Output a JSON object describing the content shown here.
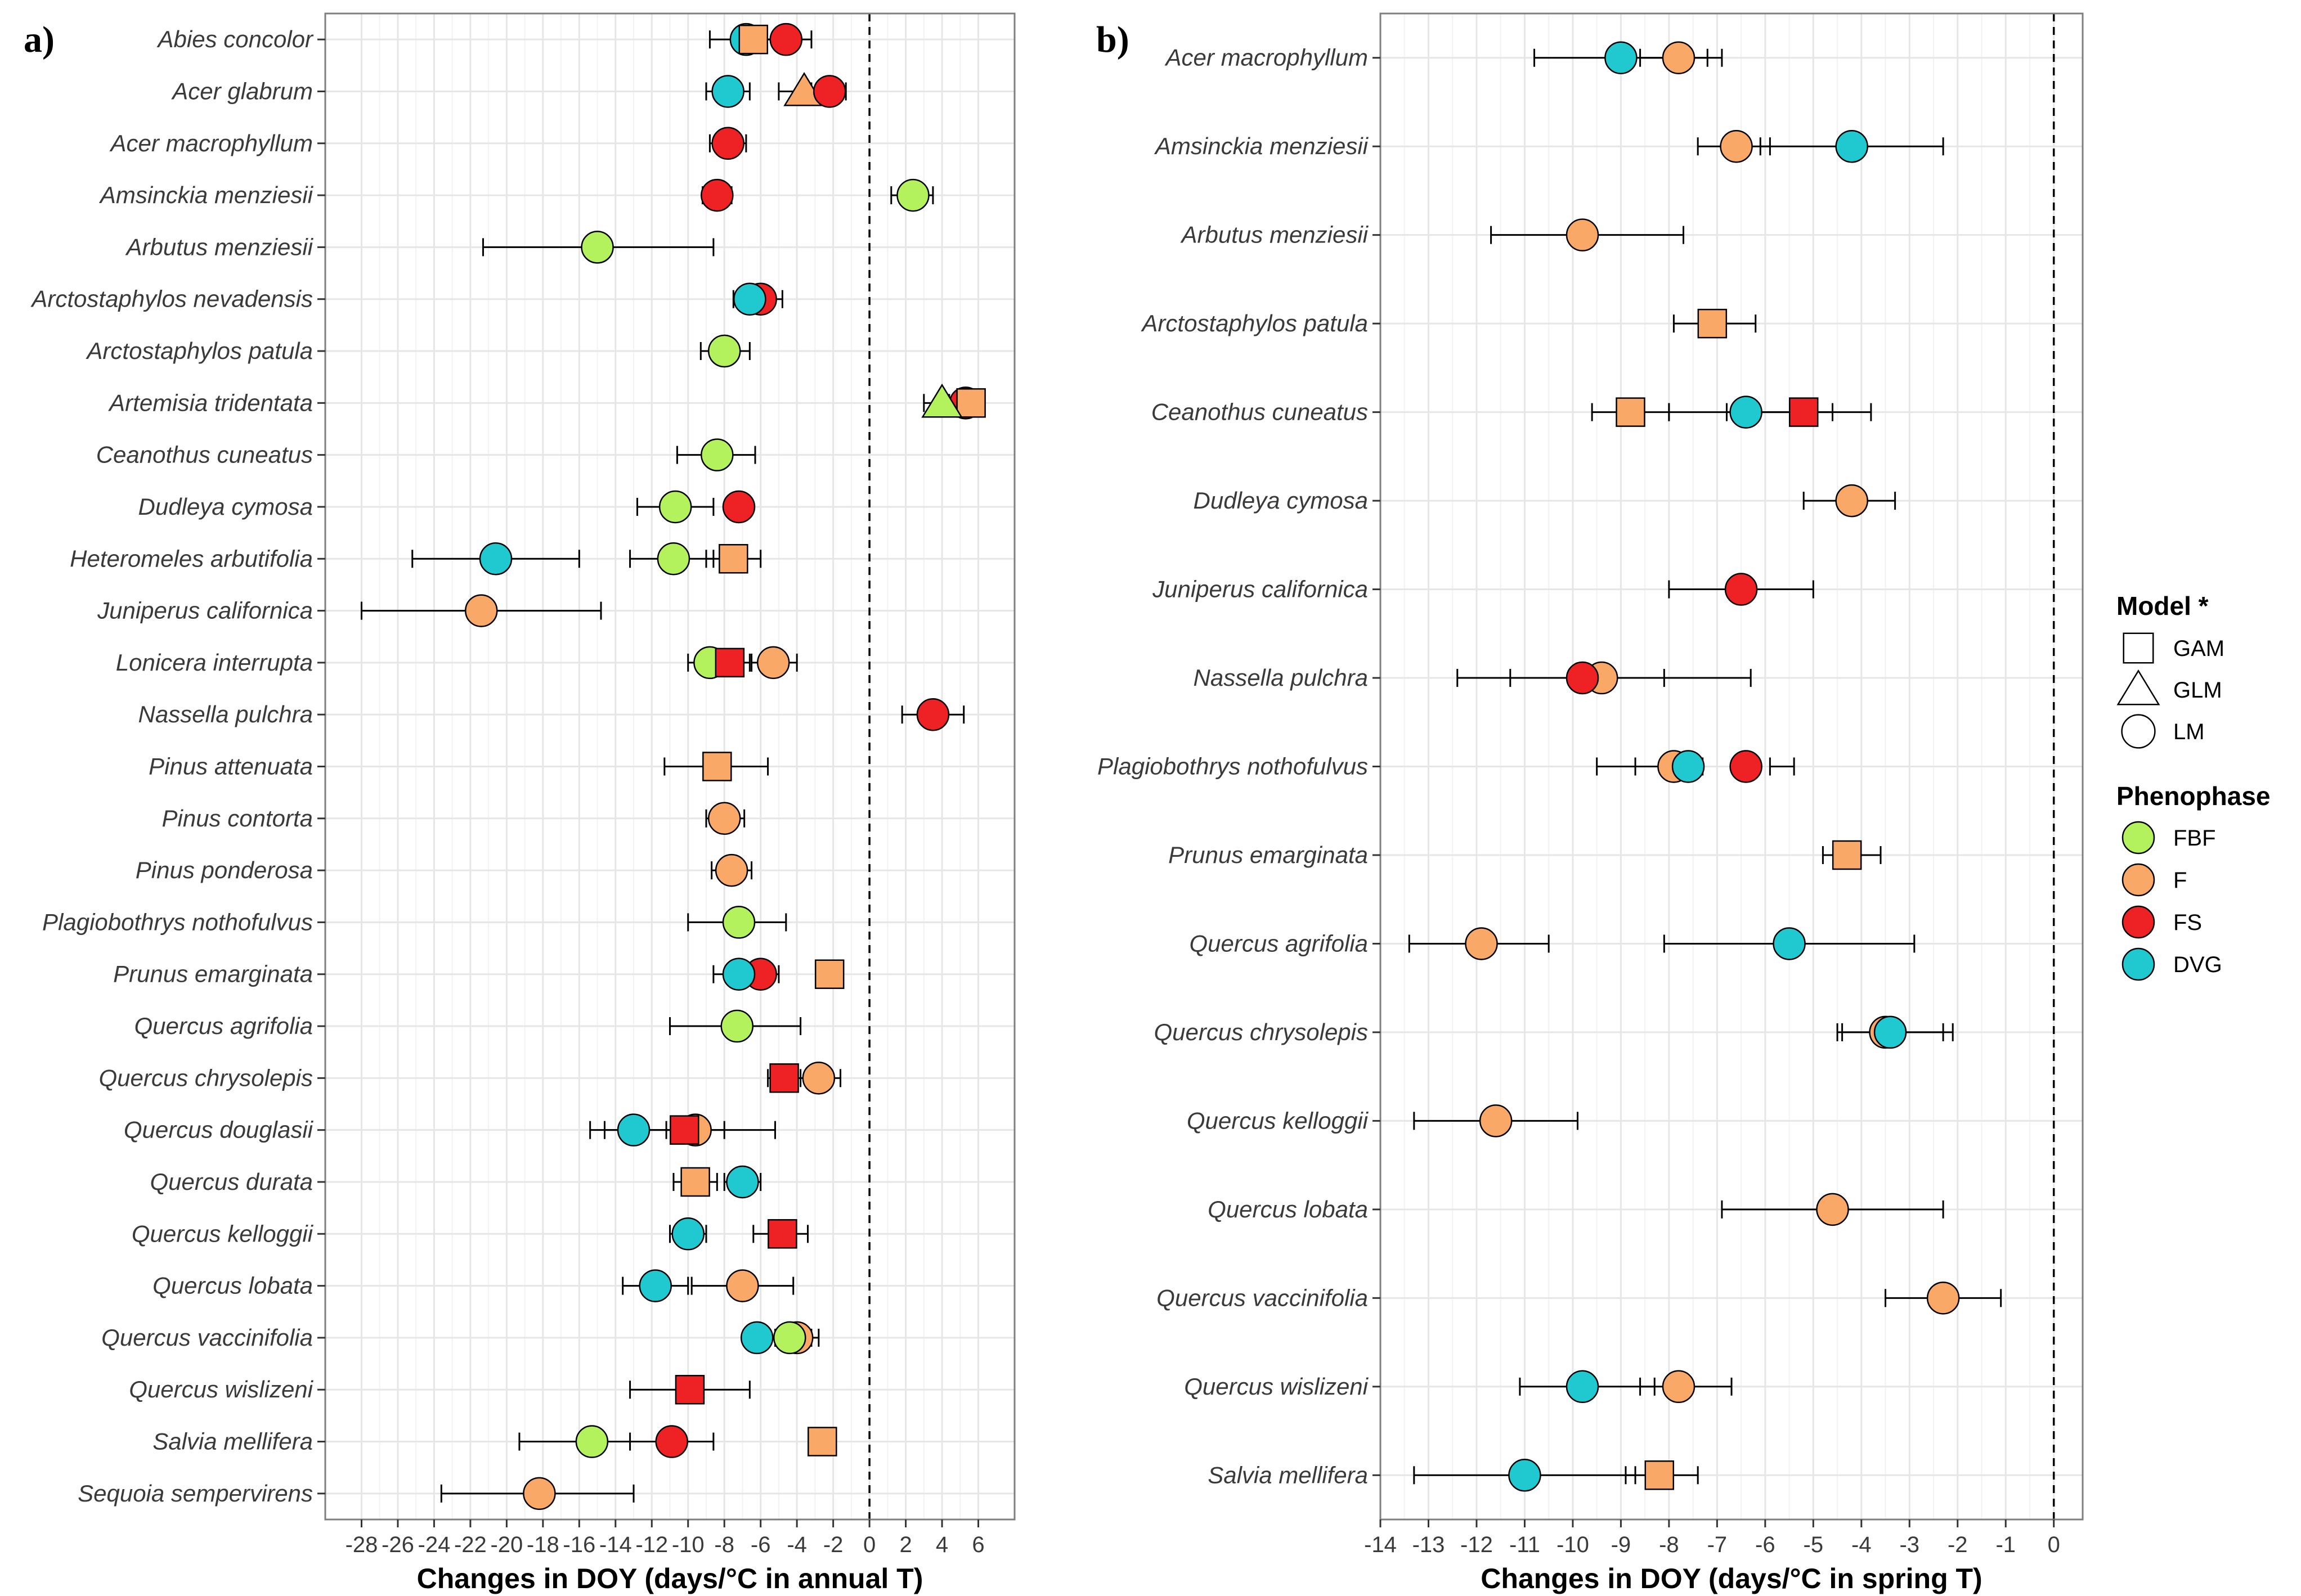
{
  "colors": {
    "FBF": "#b3f25c",
    "F": "#f9a867",
    "FS": "#ee2225",
    "DVG": "#1fc9cf"
  },
  "legend": {
    "model_title": "Model *",
    "models": [
      "GAM",
      "GLM",
      "LM"
    ],
    "phenophase_title": "Phenophase",
    "phenophases": [
      "FBF",
      "F",
      "FS",
      "DVG"
    ]
  },
  "chart_data": [
    {
      "type": "scatter",
      "panel": "a)",
      "xlabel": "Changes in DOY (days/°C in annual T)",
      "xlim": [
        -30,
        8
      ],
      "xticks": [
        -28,
        -26,
        -24,
        -22,
        -20,
        -18,
        -16,
        -14,
        -12,
        -10,
        -8,
        -6,
        -4,
        -2,
        0,
        2,
        4,
        6
      ],
      "species": [
        "Abies concolor",
        "Acer glabrum",
        "Acer macrophyllum",
        "Amsinckia menziesii",
        "Arbutus menziesii",
        "Arctostaphylos nevadensis",
        "Arctostaphylos patula",
        "Artemisia tridentata",
        "Ceanothus cuneatus",
        "Dudleya cymosa",
        "Heteromeles arbutifolia",
        "Juniperus californica",
        "Lonicera interrupta",
        "Nassella pulchra",
        "Pinus attenuata",
        "Pinus contorta",
        "Pinus ponderosa",
        "Plagiobothrys nothofulvus",
        "Prunus emarginata",
        "Quercus agrifolia",
        "Quercus chrysolepis",
        "Quercus douglasii",
        "Quercus durata",
        "Quercus kelloggii",
        "Quercus lobata",
        "Quercus vaccinifolia",
        "Quercus wislizeni",
        "Salvia mellifera",
        "Sequoia sempervirens"
      ],
      "points": [
        {
          "species": "Abies concolor",
          "phase": "DVG",
          "model": "LM",
          "value": -6.8,
          "lo": -8.8,
          "hi": -5.0
        },
        {
          "species": "Abies concolor",
          "phase": "FS",
          "model": "LM",
          "value": -4.6,
          "lo": -6.0,
          "hi": -3.2
        },
        {
          "species": "Abies concolor",
          "phase": "F",
          "model": "GAM",
          "value": -6.4,
          "lo": -7.0,
          "hi": -5.8
        },
        {
          "species": "Acer glabrum",
          "phase": "DVG",
          "model": "LM",
          "value": -7.8,
          "lo": -9.0,
          "hi": -6.6
        },
        {
          "species": "Acer glabrum",
          "phase": "F",
          "model": "GLM",
          "value": -3.6,
          "lo": -5.0,
          "hi": -2.6
        },
        {
          "species": "Acer glabrum",
          "phase": "FS",
          "model": "LM",
          "value": -2.2,
          "lo": -3.2,
          "hi": -1.3
        },
        {
          "species": "Acer macrophyllum",
          "phase": "FS",
          "model": "LM",
          "value": -7.8,
          "lo": -8.8,
          "hi": -6.8
        },
        {
          "species": "Amsinckia menziesii",
          "phase": "FS",
          "model": "LM",
          "value": -8.4,
          "lo": -9.2,
          "hi": -7.6
        },
        {
          "species": "Amsinckia menziesii",
          "phase": "FBF",
          "model": "LM",
          "value": 2.4,
          "lo": 1.2,
          "hi": 3.5
        },
        {
          "species": "Arbutus menziesii",
          "phase": "FBF",
          "model": "LM",
          "value": -15.0,
          "lo": -21.3,
          "hi": -8.6
        },
        {
          "species": "Arctostaphylos nevadensis",
          "phase": "FS",
          "model": "LM",
          "value": -6.0,
          "lo": -7.0,
          "hi": -4.8
        },
        {
          "species": "Arctostaphylos nevadensis",
          "phase": "DVG",
          "model": "LM",
          "value": -6.6,
          "lo": -7.5,
          "hi": -5.6
        },
        {
          "species": "Arctostaphylos patula",
          "phase": "FBF",
          "model": "LM",
          "value": -8.0,
          "lo": -9.3,
          "hi": -6.6
        },
        {
          "species": "Artemisia tridentata",
          "phase": "FS",
          "model": "LM",
          "value": 5.3,
          "lo": 4.4,
          "hi": 6.0
        },
        {
          "species": "Artemisia tridentata",
          "phase": "F",
          "model": "GAM",
          "value": 5.6,
          "lo": 5.0,
          "hi": 6.1
        },
        {
          "species": "Artemisia tridentata",
          "phase": "FBF",
          "model": "GLM",
          "value": 4.0,
          "lo": 3.0,
          "hi": 5.0
        },
        {
          "species": "Ceanothus cuneatus",
          "phase": "FBF",
          "model": "LM",
          "value": -8.4,
          "lo": -10.6,
          "hi": -6.3
        },
        {
          "species": "Dudleya cymosa",
          "phase": "FBF",
          "model": "LM",
          "value": -10.7,
          "lo": -12.8,
          "hi": -8.6
        },
        {
          "species": "Dudleya cymosa",
          "phase": "FS",
          "model": "LM",
          "value": -7.2,
          "lo": -7.8,
          "hi": -6.6
        },
        {
          "species": "Heteromeles arbutifolia",
          "phase": "DVG",
          "model": "LM",
          "value": -20.6,
          "lo": -25.2,
          "hi": -16.0
        },
        {
          "species": "Heteromeles arbutifolia",
          "phase": "FBF",
          "model": "LM",
          "value": -10.8,
          "lo": -13.2,
          "hi": -8.6
        },
        {
          "species": "Heteromeles arbutifolia",
          "phase": "F",
          "model": "GAM",
          "value": -7.5,
          "lo": -9.0,
          "hi": -6.0
        },
        {
          "species": "Juniperus californica",
          "phase": "F",
          "model": "LM",
          "value": -21.4,
          "lo": -28.0,
          "hi": -14.8
        },
        {
          "species": "Lonicera interrupta",
          "phase": "FBF",
          "model": "LM",
          "value": -8.8,
          "lo": -10.0,
          "hi": -7.4
        },
        {
          "species": "Lonicera interrupta",
          "phase": "FS",
          "model": "GAM",
          "value": -7.7,
          "lo": -8.8,
          "hi": -6.6
        },
        {
          "species": "Lonicera interrupta",
          "phase": "F",
          "model": "LM",
          "value": -5.3,
          "lo": -6.5,
          "hi": -4.0
        },
        {
          "species": "Nassella pulchra",
          "phase": "FS",
          "model": "LM",
          "value": 3.5,
          "lo": 1.8,
          "hi": 5.2
        },
        {
          "species": "Pinus attenuata",
          "phase": "F",
          "model": "GAM",
          "value": -8.4,
          "lo": -11.3,
          "hi": -5.6
        },
        {
          "species": "Pinus contorta",
          "phase": "F",
          "model": "LM",
          "value": -8.0,
          "lo": -9.0,
          "hi": -6.9
        },
        {
          "species": "Pinus ponderosa",
          "phase": "F",
          "model": "LM",
          "value": -7.6,
          "lo": -8.7,
          "hi": -6.5
        },
        {
          "species": "Plagiobothrys nothofulvus",
          "phase": "FBF",
          "model": "LM",
          "value": -7.2,
          "lo": -10.0,
          "hi": -4.6
        },
        {
          "species": "Prunus emarginata",
          "phase": "FS",
          "model": "LM",
          "value": -6.0,
          "lo": -7.0,
          "hi": -5.0
        },
        {
          "species": "Prunus emarginata",
          "phase": "DVG",
          "model": "LM",
          "value": -7.2,
          "lo": -8.6,
          "hi": -6.0
        },
        {
          "species": "Prunus emarginata",
          "phase": "F",
          "model": "GAM",
          "value": -2.2,
          "lo": -2.8,
          "hi": -1.6
        },
        {
          "species": "Quercus agrifolia",
          "phase": "FBF",
          "model": "LM",
          "value": -7.3,
          "lo": -11.0,
          "hi": -3.8
        },
        {
          "species": "Quercus chrysolepis",
          "phase": "F",
          "model": "LM",
          "value": -2.8,
          "lo": -4.2,
          "hi": -1.6
        },
        {
          "species": "Quercus chrysolepis",
          "phase": "FS",
          "model": "GAM",
          "value": -4.7,
          "lo": -5.6,
          "hi": -3.8
        },
        {
          "species": "Quercus douglasii",
          "phase": "DVG",
          "model": "LM",
          "value": -13.0,
          "lo": -15.4,
          "hi": -10.6
        },
        {
          "species": "Quercus douglasii",
          "phase": "F",
          "model": "LM",
          "value": -9.6,
          "lo": -11.2,
          "hi": -8.0
        },
        {
          "species": "Quercus douglasii",
          "phase": "FS",
          "model": "GAM",
          "value": -10.2,
          "lo": -14.6,
          "hi": -5.2
        },
        {
          "species": "Quercus durata",
          "phase": "F",
          "model": "GAM",
          "value": -9.6,
          "lo": -10.8,
          "hi": -8.4
        },
        {
          "species": "Quercus durata",
          "phase": "DVG",
          "model": "LM",
          "value": -7.0,
          "lo": -8.0,
          "hi": -6.0
        },
        {
          "species": "Quercus kelloggii",
          "phase": "DVG",
          "model": "LM",
          "value": -10.0,
          "lo": -11.0,
          "hi": -9.0
        },
        {
          "species": "Quercus kelloggii",
          "phase": "FS",
          "model": "GAM",
          "value": -4.8,
          "lo": -6.4,
          "hi": -3.4
        },
        {
          "species": "Quercus lobata",
          "phase": "DVG",
          "model": "LM",
          "value": -11.8,
          "lo": -13.6,
          "hi": -10.0
        },
        {
          "species": "Quercus lobata",
          "phase": "F",
          "model": "LM",
          "value": -7.0,
          "lo": -9.8,
          "hi": -4.2
        },
        {
          "species": "Quercus vaccinifolia",
          "phase": "F",
          "model": "LM",
          "value": -4.0,
          "lo": -5.2,
          "hi": -2.8
        },
        {
          "species": "Quercus vaccinifolia",
          "phase": "DVG",
          "model": "LM",
          "value": -6.2,
          "lo": -6.8,
          "hi": -5.6
        },
        {
          "species": "Quercus vaccinifolia",
          "phase": "FBF",
          "model": "LM",
          "value": -4.4,
          "lo": -5.6,
          "hi": -3.2
        },
        {
          "species": "Quercus wislizeni",
          "phase": "FS",
          "model": "GAM",
          "value": -9.9,
          "lo": -13.2,
          "hi": -6.6
        },
        {
          "species": "Salvia mellifera",
          "phase": "FBF",
          "model": "LM",
          "value": -15.3,
          "lo": -19.3,
          "hi": -11.3
        },
        {
          "species": "Salvia mellifera",
          "phase": "FS",
          "model": "LM",
          "value": -10.9,
          "lo": -13.2,
          "hi": -8.6
        },
        {
          "species": "Salvia mellifera",
          "phase": "F",
          "model": "GAM",
          "value": -2.6,
          "lo": -3.2,
          "hi": -2.0
        },
        {
          "species": "Sequoia sempervirens",
          "phase": "F",
          "model": "LM",
          "value": -18.2,
          "lo": -23.6,
          "hi": -13.0
        }
      ]
    },
    {
      "type": "scatter",
      "panel": "b)",
      "xlabel": "Changes in DOY (days/°C in spring T)",
      "xlim": [
        -14,
        0.6
      ],
      "xticks": [
        -14,
        -13,
        -12,
        -11,
        -10,
        -9,
        -8,
        -7,
        -6,
        -5,
        -4,
        -3,
        -2,
        -1,
        0
      ],
      "species": [
        "Acer macrophyllum",
        "Amsinckia menziesii",
        "Arbutus menziesii",
        "Arctostaphylos patula",
        "Ceanothus cuneatus",
        "Dudleya cymosa",
        "Juniperus californica",
        "Nassella pulchra",
        "Plagiobothrys nothofulvus",
        "Prunus emarginata",
        "Quercus agrifolia",
        "Quercus chrysolepis",
        "Quercus kelloggii",
        "Quercus lobata",
        "Quercus vaccinifolia",
        "Quercus wislizeni",
        "Salvia mellifera"
      ],
      "points": [
        {
          "species": "Acer macrophyllum",
          "phase": "DVG",
          "model": "LM",
          "value": -9.0,
          "lo": -10.8,
          "hi": -7.2
        },
        {
          "species": "Acer macrophyllum",
          "phase": "F",
          "model": "LM",
          "value": -7.8,
          "lo": -8.6,
          "hi": -6.9
        },
        {
          "species": "Amsinckia menziesii",
          "phase": "F",
          "model": "LM",
          "value": -6.6,
          "lo": -7.4,
          "hi": -5.9
        },
        {
          "species": "Amsinckia menziesii",
          "phase": "DVG",
          "model": "LM",
          "value": -4.2,
          "lo": -6.1,
          "hi": -2.3
        },
        {
          "species": "Arbutus menziesii",
          "phase": "F",
          "model": "LM",
          "value": -9.8,
          "lo": -11.7,
          "hi": -7.7
        },
        {
          "species": "Arctostaphylos patula",
          "phase": "F",
          "model": "GAM",
          "value": -7.1,
          "lo": -7.9,
          "hi": -6.2
        },
        {
          "species": "Ceanothus cuneatus",
          "phase": "F",
          "model": "GAM",
          "value": -8.8,
          "lo": -9.6,
          "hi": -8.0
        },
        {
          "species": "Ceanothus cuneatus",
          "phase": "DVG",
          "model": "LM",
          "value": -6.4,
          "lo": -8.0,
          "hi": -4.6
        },
        {
          "species": "Ceanothus cuneatus",
          "phase": "FS",
          "model": "GAM",
          "value": -5.2,
          "lo": -6.8,
          "hi": -3.8
        },
        {
          "species": "Dudleya cymosa",
          "phase": "F",
          "model": "LM",
          "value": -4.2,
          "lo": -5.2,
          "hi": -3.3
        },
        {
          "species": "Juniperus californica",
          "phase": "FS",
          "model": "LM",
          "value": -6.5,
          "lo": -8.0,
          "hi": -5.0
        },
        {
          "species": "Nassella pulchra",
          "phase": "F",
          "model": "LM",
          "value": -9.4,
          "lo": -11.3,
          "hi": -6.3
        },
        {
          "species": "Nassella pulchra",
          "phase": "FS",
          "model": "LM",
          "value": -9.8,
          "lo": -12.4,
          "hi": -8.1
        },
        {
          "species": "Plagiobothrys nothofulvus",
          "phase": "F",
          "model": "LM",
          "value": -7.9,
          "lo": -9.5,
          "hi": -7.4
        },
        {
          "species": "Plagiobothrys nothofulvus",
          "phase": "DVG",
          "model": "LM",
          "value": -7.6,
          "lo": -8.7,
          "hi": -7.3
        },
        {
          "species": "Plagiobothrys nothofulvus",
          "phase": "FS",
          "model": "LM",
          "value": -6.4,
          "lo": -5.9,
          "hi": -5.4
        },
        {
          "species": "Prunus emarginata",
          "phase": "F",
          "model": "GAM",
          "value": -4.3,
          "lo": -4.8,
          "hi": -3.6
        },
        {
          "species": "Quercus agrifolia",
          "phase": "F",
          "model": "LM",
          "value": -11.9,
          "lo": -13.4,
          "hi": -10.5
        },
        {
          "species": "Quercus agrifolia",
          "phase": "DVG",
          "model": "LM",
          "value": -5.5,
          "lo": -8.1,
          "hi": -2.9
        },
        {
          "species": "Quercus chrysolepis",
          "phase": "F",
          "model": "LM",
          "value": -3.5,
          "lo": -4.5,
          "hi": -2.3
        },
        {
          "species": "Quercus chrysolepis",
          "phase": "DVG",
          "model": "LM",
          "value": -3.4,
          "lo": -4.4,
          "hi": -2.1
        },
        {
          "species": "Quercus kelloggii",
          "phase": "F",
          "model": "LM",
          "value": -11.6,
          "lo": -13.3,
          "hi": -9.9
        },
        {
          "species": "Quercus lobata",
          "phase": "F",
          "model": "LM",
          "value": -4.6,
          "lo": -6.9,
          "hi": -2.3
        },
        {
          "species": "Quercus vaccinifolia",
          "phase": "F",
          "model": "LM",
          "value": -2.3,
          "lo": -3.5,
          "hi": -1.1
        },
        {
          "species": "Quercus wislizeni",
          "phase": "DVG",
          "model": "LM",
          "value": -9.8,
          "lo": -11.1,
          "hi": -8.3
        },
        {
          "species": "Quercus wislizeni",
          "phase": "F",
          "model": "LM",
          "value": -7.8,
          "lo": -8.6,
          "hi": -6.7
        },
        {
          "species": "Salvia mellifera",
          "phase": "DVG",
          "model": "LM",
          "value": -11.0,
          "lo": -13.3,
          "hi": -8.7
        },
        {
          "species": "Salvia mellifera",
          "phase": "F",
          "model": "GAM",
          "value": -8.2,
          "lo": -8.9,
          "hi": -7.4
        }
      ]
    }
  ]
}
